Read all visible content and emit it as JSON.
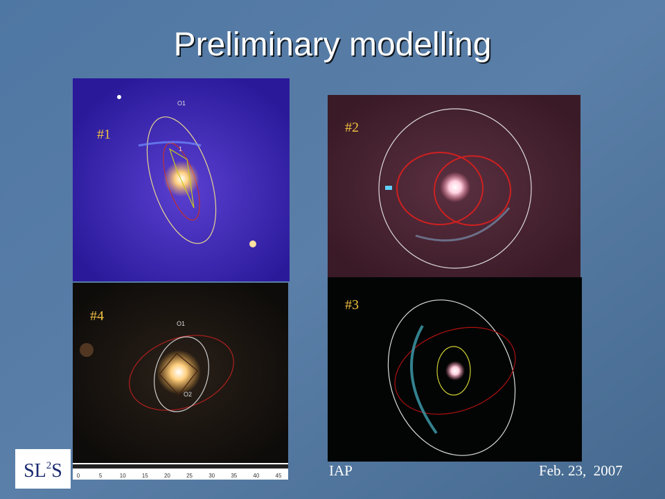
{
  "header": {
    "title": "Preliminary modelling"
  },
  "panels": [
    {
      "label": "#1",
      "annotations": [
        "O1",
        "1"
      ]
    },
    {
      "label": "#2",
      "annotations": []
    },
    {
      "label": "#3",
      "annotations": []
    },
    {
      "label": "#4",
      "annotations": [
        "O1",
        "O2"
      ]
    }
  ],
  "scale_bar": {
    "ticks": [
      0,
      5,
      10,
      15,
      20,
      25,
      30,
      35,
      40,
      45
    ]
  },
  "logo": {
    "main": "SL",
    "sup": "2",
    "end": "S"
  },
  "footer": {
    "left": "IAP",
    "right": "Feb. 23,  2007"
  }
}
